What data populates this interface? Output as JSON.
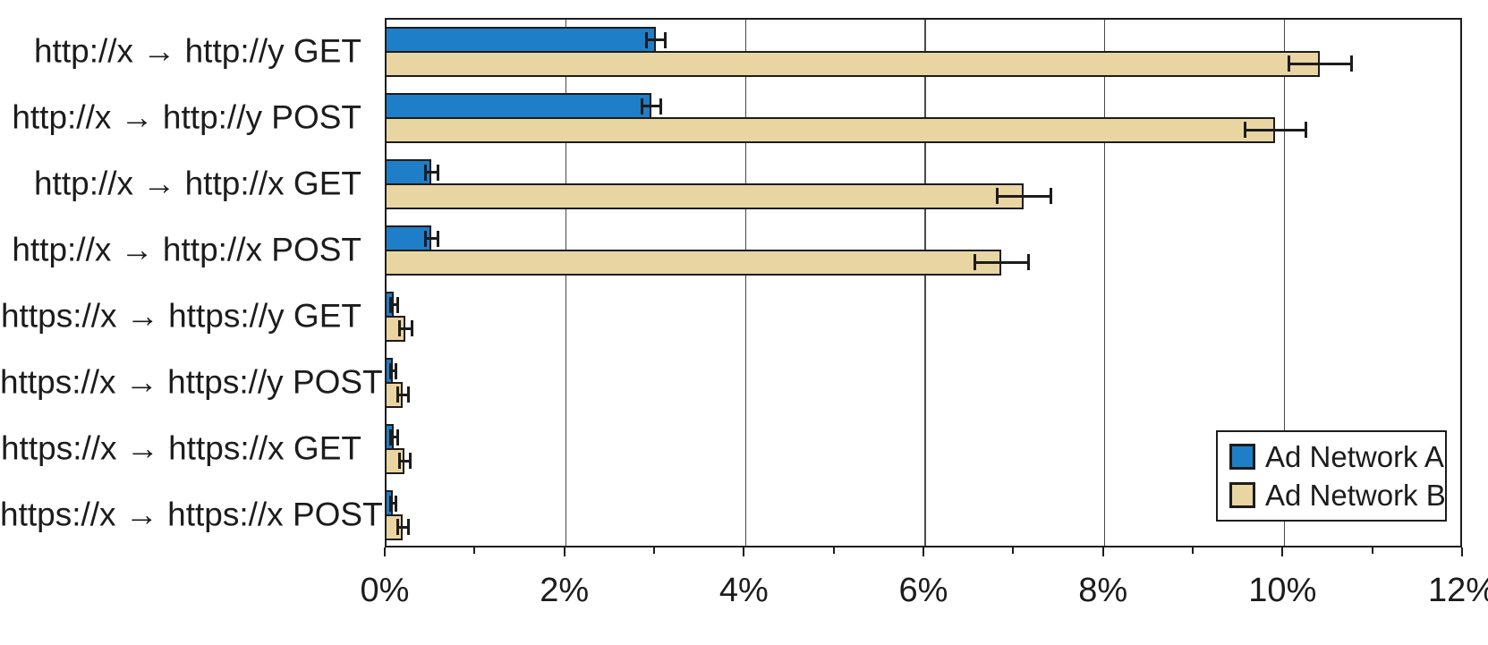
{
  "chart_data": {
    "type": "bar",
    "orientation": "horizontal",
    "title": "",
    "xlabel": "",
    "ylabel": "",
    "xlim": [
      0,
      12
    ],
    "x_unit": "%",
    "x_tick_labels": [
      "0%",
      "2%",
      "4%",
      "6%",
      "8%",
      "10%",
      "12%"
    ],
    "x_major_step": 2,
    "x_minor_step": 1,
    "grid": "vertical major gridlines, full plot border",
    "legend_position": "inside bottom-right",
    "categories": [
      "http://x → http://y GET",
      "http://x → http://y POST",
      "http://x → http://x GET",
      "http://x → http://x POST",
      "https://x → https://y GET",
      "https://x → https://y POST",
      "https://x → https://x GET",
      "https://x → https://x POST"
    ],
    "series": [
      {
        "name": "Ad Network A",
        "color": "#1F7EC8",
        "values": [
          3.0,
          2.95,
          0.5,
          0.5,
          0.08,
          0.07,
          0.08,
          0.07
        ],
        "errors": [
          0.1,
          0.1,
          0.07,
          0.07,
          0.04,
          0.03,
          0.04,
          0.03
        ]
      },
      {
        "name": "Ad Network B",
        "color": "#E9D5A2",
        "values": [
          10.4,
          9.9,
          7.1,
          6.85,
          0.21,
          0.18,
          0.2,
          0.18
        ],
        "errors": [
          0.35,
          0.34,
          0.3,
          0.3,
          0.07,
          0.06,
          0.06,
          0.06
        ]
      }
    ],
    "colors": {
      "axis": "#1C1C1C",
      "gridline": "#4A4A4A",
      "background": "#FFFFFF"
    }
  }
}
